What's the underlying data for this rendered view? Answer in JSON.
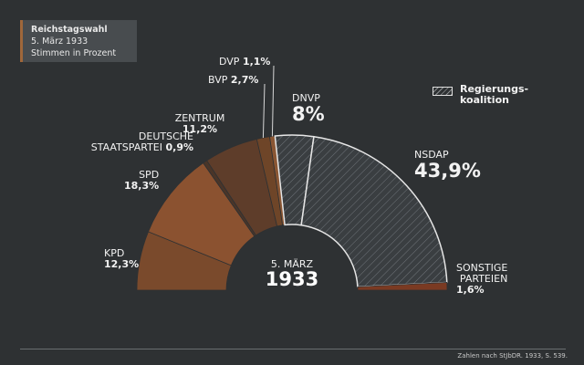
{
  "legend": {
    "line1": "Reichstagswahl",
    "line2": "5. März 1933",
    "line3": "Stimmen in Prozent"
  },
  "center": {
    "line1": "5. MÄRZ",
    "line2": "1933"
  },
  "coalition_legend": {
    "line1": "Regierungs-",
    "line2": "koalition"
  },
  "source": "Zahlen nach StJbDR. 1933, S. 539.",
  "labels": {
    "kpd_name": "KPD",
    "kpd_value": "12,3%",
    "spd_name": "SPD",
    "spd_value": "18,3%",
    "dsp_name1": "DEUTSCHE",
    "dsp_name2": "STAATSPARTEI",
    "dsp_value": "0,9%",
    "zentrum_name": "ZENTRUM",
    "zentrum_value": "11,2%",
    "bvp_name": "BVP",
    "bvp_value": "2,7%",
    "dvp_name": "DVP",
    "dvp_value": "1,1%",
    "dnvp_name": "DNVP",
    "dnvp_value": "8%",
    "nsdap_name": "NSDAP",
    "nsdap_value": "43,9%",
    "sonst_name1": "SONSTIGE",
    "sonst_name2": "PARTEIEN",
    "sonst_value": "1,6%"
  },
  "chart_data": {
    "type": "pie",
    "subtype": "semicircle",
    "title": "Reichstagswahl",
    "subtitle": "5. März 1933",
    "unit": "Stimmen in Prozent",
    "categories": [
      "KPD",
      "SPD",
      "DEUTSCHE STAATSPARTEI",
      "ZENTRUM",
      "BVP",
      "DVP",
      "DNVP",
      "NSDAP",
      "SONSTIGE PARTEIEN"
    ],
    "values": [
      12.3,
      18.3,
      0.9,
      11.2,
      2.7,
      1.1,
      8.0,
      43.9,
      1.6
    ],
    "colors": [
      "#7a4a2c",
      "#8b5230",
      "#4a3528",
      "#5e3d2a",
      "#6e4528",
      "#8a5633",
      "#3c4043",
      "#3c4043",
      "#7a3a22"
    ],
    "coalition": [
      "DNVP",
      "NSDAP"
    ]
  }
}
